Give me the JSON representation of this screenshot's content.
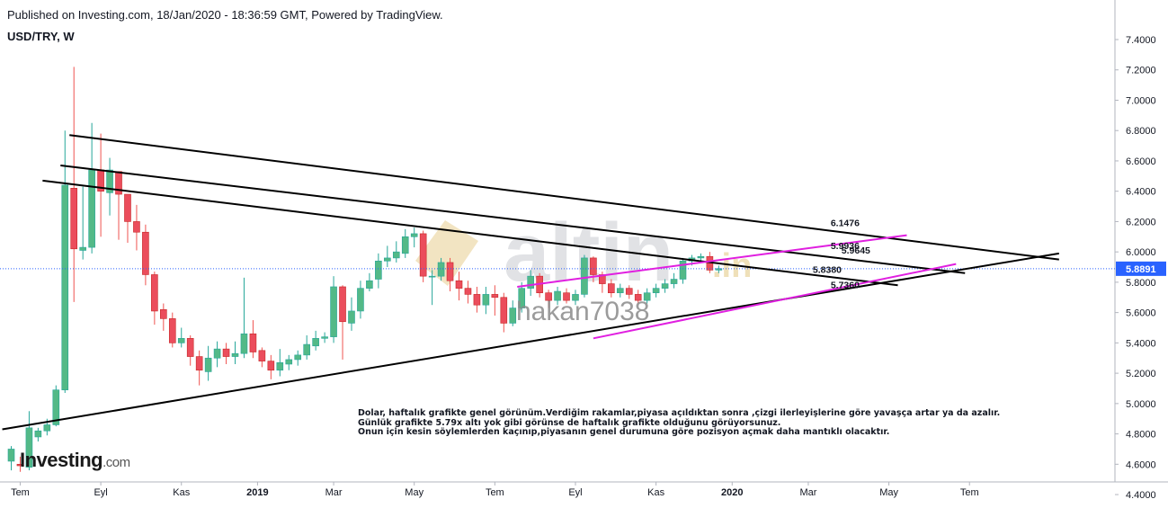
{
  "header": {
    "published": "Published on Investing.com, 18/Jan/2020 - 18:36:59 GMT, Powered by TradingView.",
    "symbol": "USD/TRY, W"
  },
  "logo": {
    "main": "Investing",
    "suffix": ".com"
  },
  "watermarks": {
    "brand": "altin",
    "brand_suffix": ".in",
    "user": "hakan7038"
  },
  "annotation_lines": [
    "Dolar, haftalık grafikte genel görünüm.Verdiğim rakamlar,piyasa açıldıktan sonra ,çizgi ilerleyişlerine göre yavaşça artar ya da azalır.",
    "Günlük grafikte 5.79x altı yok gibi görünse de haftalık grafikte olduğunu görüyorsunuz.",
    "Onun için kesin söylemlerden kaçınıp,piyasanın genel durumuna göre pozisyon açmak daha mantıklı olacaktır."
  ],
  "colors": {
    "up": "#26a69a",
    "up_fill": "#53b987",
    "down": "#ef5350",
    "down_fill": "#eb4d5c",
    "trendline": "#000000",
    "channel": "#e01fe0",
    "price_line": "#2962ff",
    "price_label_bg": "#2962ff",
    "axis_text": "#131722"
  },
  "chart_data": {
    "type": "candlestick",
    "symbol": "USD/TRY",
    "interval": "W",
    "ylim": [
      4.35,
      7.48
    ],
    "y_ticks": [
      4.4,
      4.6,
      4.8,
      5.0,
      5.2,
      5.4,
      5.6,
      5.8,
      6.0,
      6.2,
      6.4,
      6.6,
      6.8,
      7.0,
      7.2,
      7.4
    ],
    "x_tick_labels": [
      "Tem",
      "Eyl",
      "Kas",
      "2019",
      "Mar",
      "May",
      "Tem",
      "Eyl",
      "Kas",
      "2020",
      "Mar",
      "May",
      "Tem"
    ],
    "x_tick_index": [
      1,
      10,
      19,
      27.5,
      36,
      45,
      54,
      63,
      72,
      80.5,
      89,
      98,
      107
    ],
    "last_price": "5.8891",
    "last_price_value": 5.8891,
    "candles": [
      [
        4.62,
        4.7,
        4.72,
        4.56
      ],
      [
        4.6,
        4.59,
        4.65,
        4.55
      ],
      [
        4.58,
        4.84,
        4.95,
        4.56
      ],
      [
        4.78,
        4.82,
        4.84,
        4.75
      ],
      [
        4.82,
        4.86,
        4.9,
        4.79
      ],
      [
        4.86,
        5.09,
        5.12,
        4.85
      ],
      [
        5.09,
        6.44,
        6.8,
        5.07
      ],
      [
        6.42,
        6.02,
        7.22,
        5.67
      ],
      [
        6.01,
        6.03,
        6.43,
        5.95
      ],
      [
        6.03,
        6.54,
        6.85,
        5.99
      ],
      [
        6.54,
        6.4,
        6.78,
        6.1
      ],
      [
        6.39,
        6.54,
        6.62,
        6.24
      ],
      [
        6.53,
        6.38,
        6.43,
        6.08
      ],
      [
        6.38,
        6.2,
        6.35,
        6.06
      ],
      [
        6.2,
        6.13,
        6.31,
        6.01
      ],
      [
        6.13,
        5.85,
        6.18,
        5.78
      ],
      [
        5.85,
        5.61,
        5.87,
        5.52
      ],
      [
        5.62,
        5.56,
        5.66,
        5.48
      ],
      [
        5.56,
        5.4,
        5.6,
        5.37
      ],
      [
        5.4,
        5.43,
        5.5,
        5.37
      ],
      [
        5.43,
        5.31,
        5.45,
        5.25
      ],
      [
        5.31,
        5.22,
        5.35,
        5.12
      ],
      [
        5.21,
        5.3,
        5.38,
        5.15
      ],
      [
        5.3,
        5.36,
        5.41,
        5.24
      ],
      [
        5.36,
        5.31,
        5.4,
        5.26
      ],
      [
        5.31,
        5.33,
        5.41,
        5.26
      ],
      [
        5.33,
        5.46,
        5.83,
        5.3
      ],
      [
        5.46,
        5.34,
        5.55,
        5.3
      ],
      [
        5.35,
        5.28,
        5.37,
        5.24
      ],
      [
        5.28,
        5.22,
        5.32,
        5.16
      ],
      [
        5.22,
        5.27,
        5.36,
        5.18
      ],
      [
        5.26,
        5.29,
        5.32,
        5.22
      ],
      [
        5.29,
        5.32,
        5.35,
        5.25
      ],
      [
        5.32,
        5.39,
        5.45,
        5.29
      ],
      [
        5.38,
        5.43,
        5.48,
        5.35
      ],
      [
        5.43,
        5.44,
        5.47,
        5.4
      ],
      [
        5.44,
        5.77,
        5.84,
        5.4
      ],
      [
        5.77,
        5.54,
        5.78,
        5.29
      ],
      [
        5.53,
        5.61,
        5.7,
        5.48
      ],
      [
        5.61,
        5.76,
        5.81,
        5.56
      ],
      [
        5.76,
        5.81,
        5.86,
        5.74
      ],
      [
        5.82,
        5.94,
        5.99,
        5.76
      ],
      [
        5.94,
        5.96,
        6.04,
        5.9
      ],
      [
        5.96,
        6.0,
        6.07,
        5.93
      ],
      [
        5.99,
        6.1,
        6.15,
        5.96
      ],
      [
        6.1,
        6.12,
        6.16,
        6.03
      ],
      [
        6.12,
        5.84,
        6.14,
        5.8
      ],
      [
        5.84,
        5.84,
        5.88,
        5.65
      ],
      [
        5.84,
        5.93,
        5.96,
        5.81
      ],
      [
        5.93,
        5.81,
        5.96,
        5.74
      ],
      [
        5.81,
        5.76,
        5.87,
        5.68
      ],
      [
        5.76,
        5.72,
        5.81,
        5.66
      ],
      [
        5.72,
        5.65,
        5.77,
        5.6
      ],
      [
        5.65,
        5.72,
        5.77,
        5.59
      ],
      [
        5.72,
        5.7,
        5.78,
        5.58
      ],
      [
        5.7,
        5.53,
        5.73,
        5.47
      ],
      [
        5.53,
        5.63,
        5.68,
        5.51
      ],
      [
        5.63,
        5.76,
        5.8,
        5.6
      ],
      [
        5.76,
        5.84,
        5.88,
        5.71
      ],
      [
        5.84,
        5.73,
        5.86,
        5.7
      ],
      [
        5.73,
        5.68,
        5.75,
        5.63
      ],
      [
        5.68,
        5.74,
        5.77,
        5.65
      ],
      [
        5.73,
        5.68,
        5.76,
        5.66
      ],
      [
        5.68,
        5.72,
        5.75,
        5.65
      ],
      [
        5.72,
        5.96,
        5.98,
        5.7
      ],
      [
        5.96,
        5.85,
        5.97,
        5.8
      ],
      [
        5.85,
        5.79,
        5.87,
        5.73
      ],
      [
        5.79,
        5.73,
        5.82,
        5.7
      ],
      [
        5.73,
        5.76,
        5.79,
        5.7
      ],
      [
        5.76,
        5.72,
        5.78,
        5.69
      ],
      [
        5.72,
        5.68,
        5.75,
        5.66
      ],
      [
        5.68,
        5.73,
        5.76,
        5.66
      ],
      [
        5.73,
        5.76,
        5.79,
        5.7
      ],
      [
        5.76,
        5.79,
        5.82,
        5.73
      ],
      [
        5.79,
        5.82,
        5.86,
        5.76
      ],
      [
        5.82,
        5.94,
        5.96,
        5.79
      ],
      [
        5.94,
        5.96,
        5.98,
        5.91
      ],
      [
        5.96,
        5.97,
        5.99,
        5.93
      ],
      [
        5.97,
        5.88,
        6.0,
        5.86
      ],
      [
        5.88,
        5.89,
        5.91,
        5.86
      ]
    ],
    "trendlines": {
      "upper_1": [
        [
          6.5,
          6.77
        ],
        [
          117,
          5.95
        ]
      ],
      "upper_2": [
        [
          5.5,
          6.57
        ],
        [
          106.5,
          5.86
        ]
      ],
      "upper_3": [
        [
          3.5,
          6.47
        ],
        [
          99,
          5.78
        ]
      ],
      "support": [
        [
          -1,
          4.83
        ],
        [
          117,
          5.99
        ]
      ],
      "channel_top": [
        [
          56.5,
          5.77
        ],
        [
          100,
          6.11
        ]
      ],
      "channel_bottom": [
        [
          65,
          5.43
        ],
        [
          105.5,
          5.92
        ]
      ]
    },
    "level_labels": [
      {
        "text": "6.1476",
        "x": 91.5,
        "y": 6.1476
      },
      {
        "text": "5.9936",
        "x": 91.5,
        "y": 5.9936
      },
      {
        "text": "5.9645",
        "x": 92.7,
        "y": 5.9645
      },
      {
        "text": "5.8380",
        "x": 89.5,
        "y": 5.838
      },
      {
        "text": "5.7360",
        "x": 91.5,
        "y": 5.736
      }
    ]
  }
}
